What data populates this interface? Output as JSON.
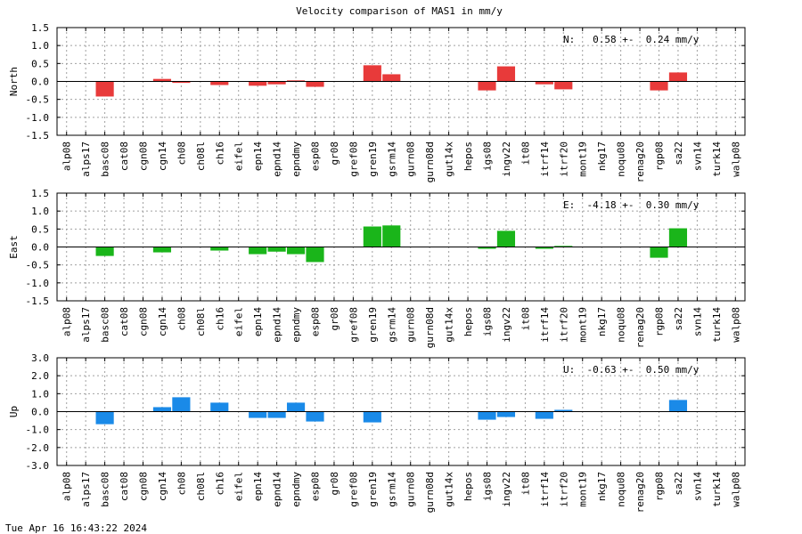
{
  "title": "Velocity comparison of MAS1 in mm/y",
  "footer_timestamp": "Tue Apr 16 16:43:22 2024",
  "chart_data": [
    {
      "type": "bar",
      "ylabel": "North",
      "ylim": [
        -1.5,
        1.5
      ],
      "yticks": [
        "1.5",
        "1.0",
        "0.5",
        "0.0",
        "-0.5",
        "-1.0",
        "-1.5"
      ],
      "grid": true,
      "color": "#e83a3a",
      "annotation": "N:   0.58 +-  0.24 mm/y",
      "categories": [
        "alp08",
        "alps17",
        "basc08",
        "cat08",
        "cgn08",
        "cgn14",
        "ch08",
        "ch08l",
        "ch16",
        "eifel",
        "epn14",
        "epnd14",
        "epndmy",
        "esp08",
        "gr08",
        "gref08",
        "gren19",
        "gsrm14",
        "gurn08",
        "gurn08d",
        "gut14x",
        "hepos",
        "igs08",
        "ingv22",
        "it08",
        "itrf14",
        "itrf20",
        "mont19",
        "nkg17",
        "noqu08",
        "renag20",
        "rgp08",
        "sa22",
        "svn14",
        "turk14",
        "walp08"
      ],
      "values": [
        0,
        0,
        -0.42,
        0,
        0,
        0.07,
        -0.04,
        0,
        -0.1,
        0,
        -0.12,
        -0.08,
        0.03,
        -0.15,
        0,
        0,
        0.45,
        0.2,
        0,
        0,
        0,
        0,
        -0.25,
        0.42,
        0,
        -0.08,
        -0.22,
        0,
        0,
        0,
        0,
        -0.25,
        0.25,
        0,
        0,
        0
      ]
    },
    {
      "type": "bar",
      "ylabel": "East",
      "ylim": [
        -1.5,
        1.5
      ],
      "yticks": [
        "1.5",
        "1.0",
        "0.5",
        "0.0",
        "-0.5",
        "-1.0",
        "-1.5"
      ],
      "grid": true,
      "color": "#1ab51a",
      "annotation": "E:  -4.18 +-  0.30 mm/y",
      "categories": [
        "alp08",
        "alps17",
        "basc08",
        "cat08",
        "cgn08",
        "cgn14",
        "ch08",
        "ch08l",
        "ch16",
        "eifel",
        "epn14",
        "epnd14",
        "epndmy",
        "esp08",
        "gr08",
        "gref08",
        "gren19",
        "gsrm14",
        "gurn08",
        "gurn08d",
        "gut14x",
        "hepos",
        "igs08",
        "ingv22",
        "it08",
        "itrf14",
        "itrf20",
        "mont19",
        "nkg17",
        "noqu08",
        "renag20",
        "rgp08",
        "sa22",
        "svn14",
        "turk14",
        "walp08"
      ],
      "values": [
        0,
        0,
        -0.25,
        0,
        0,
        -0.15,
        0,
        0,
        -0.1,
        0,
        -0.2,
        -0.13,
        -0.2,
        -0.42,
        0,
        0,
        0.57,
        0.6,
        0,
        0,
        0,
        0,
        -0.05,
        0.45,
        0,
        -0.05,
        0.03,
        0,
        0,
        0,
        0,
        -0.3,
        0.52,
        0,
        0,
        0
      ]
    },
    {
      "type": "bar",
      "ylabel": "Up",
      "ylim": [
        -3.0,
        3.0
      ],
      "yticks": [
        "3.0",
        "2.0",
        "1.0",
        "0.0",
        "-1.0",
        "-2.0",
        "-3.0"
      ],
      "grid": true,
      "color": "#1a8ae8",
      "annotation": "U:  -0.63 +-  0.50 mm/y",
      "categories": [
        "alp08",
        "alps17",
        "basc08",
        "cat08",
        "cgn08",
        "cgn14",
        "ch08",
        "ch08l",
        "ch16",
        "eifel",
        "epn14",
        "epnd14",
        "epndmy",
        "esp08",
        "gr08",
        "gref08",
        "gren19",
        "gsrm14",
        "gurn08",
        "gurn08d",
        "gut14x",
        "hepos",
        "igs08",
        "ingv22",
        "it08",
        "itrf14",
        "itrf20",
        "mont19",
        "nkg17",
        "noqu08",
        "renag20",
        "rgp08",
        "sa22",
        "svn14",
        "turk14",
        "walp08"
      ],
      "values": [
        0,
        0,
        -0.7,
        0,
        0,
        0.25,
        0.8,
        0,
        0.5,
        0,
        -0.35,
        -0.35,
        0.5,
        -0.55,
        0,
        0,
        -0.6,
        0,
        0,
        0,
        0,
        0,
        -0.45,
        -0.3,
        0,
        -0.4,
        0.1,
        0,
        0,
        0,
        0,
        0,
        0.65,
        0,
        0,
        0
      ]
    }
  ]
}
